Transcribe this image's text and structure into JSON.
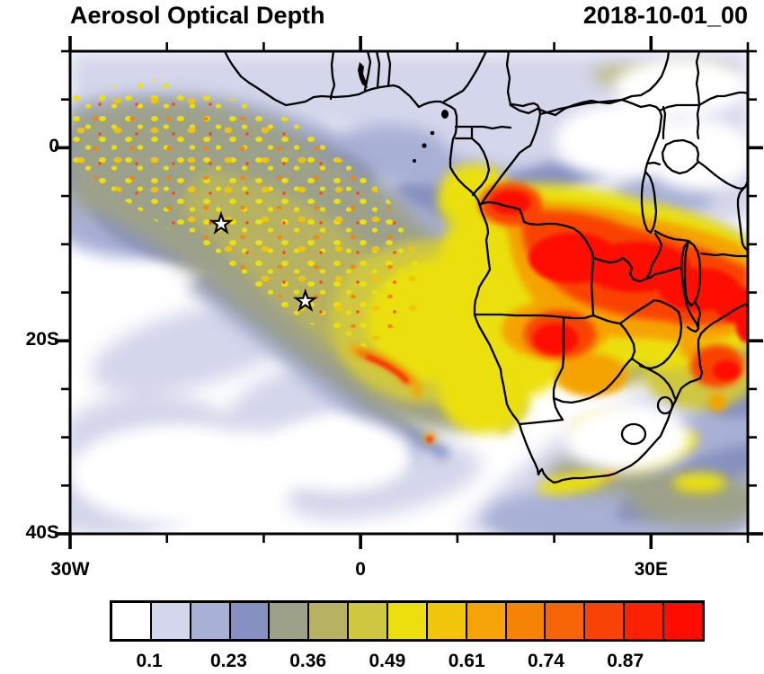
{
  "title": "Aerosol Optical Depth",
  "timestamp": "2018-10-01_00",
  "palette": [
    "#ffffff",
    "#d4d6eb",
    "#a9b0d5",
    "#8791c1",
    "#9da189",
    "#b6b262",
    "#cfc73f",
    "#ebe00e",
    "#f1c50a",
    "#f5a306",
    "#f58306",
    "#f56507",
    "#f94205",
    "#fb2103",
    "#fe0c00"
  ],
  "frame_color": "#000000",
  "chart_data": {
    "type": "heatmap",
    "title": "Aerosol Optical Depth",
    "timestamp_label": "2018-10-01_00",
    "x_axis": {
      "range_deg_lon": [
        -30,
        40
      ],
      "major_ticks": [
        {
          "deg": -30,
          "label": "30W"
        },
        {
          "deg": 0,
          "label": "0"
        },
        {
          "deg": 30,
          "label": "30E"
        }
      ],
      "minor_tick_degs": [
        -20,
        -10,
        10,
        20,
        40
      ],
      "minor_step_deg": 10
    },
    "y_axis": {
      "range_deg_lat": [
        -40,
        10
      ],
      "major_ticks": [
        {
          "deg": 0,
          "label": "0"
        },
        {
          "deg": -20,
          "label": "20S"
        },
        {
          "deg": -40,
          "label": "40S"
        }
      ],
      "minor_tick_degs": [
        10,
        5,
        -5,
        -10,
        -15,
        -25,
        -30,
        -35
      ],
      "minor_step_deg": 5
    },
    "colorbar": {
      "n_cells": 15,
      "cell_colors": [
        "#ffffff",
        "#d4d6eb",
        "#a9b0d5",
        "#8791c1",
        "#9da189",
        "#b6b262",
        "#cfc73f",
        "#ebe00e",
        "#f1c50a",
        "#f5a306",
        "#f58306",
        "#f56507",
        "#f94205",
        "#fb2103",
        "#fe0c00"
      ],
      "labels": [
        "0.1",
        "0.23",
        "0.36",
        "0.49",
        "0.61",
        "0.74",
        "0.87"
      ],
      "labeled_boundary_indices": [
        1,
        3,
        5,
        7,
        9,
        11,
        13
      ],
      "orientation": "horizontal",
      "position": "bottom"
    },
    "markers": [
      {
        "type": "star",
        "lon": -14.4,
        "lat": -7.9
      },
      {
        "type": "star",
        "lon": -5.7,
        "lat": -15.9
      }
    ],
    "field_summary": [
      {
        "region": "Central/southern Africa (Congo Basin, Angola, Zambia, around Lakes Tanganyika and Malawi)",
        "approx_lon": [
          12,
          40
        ],
        "approx_lat": [
          -16,
          -3
        ],
        "aod": "> 0.9 (red)"
      },
      {
        "region": "Biomass-burning outflow plume over SE Atlantic toward African coast",
        "approx_lon": [
          -10,
          12
        ],
        "approx_lat": [
          -25,
          -5
        ],
        "aod": "0.4 - 0.7 (olive to yellow), red arc ~0.9 near 0E, 21S"
      },
      {
        "region": "Speckled convective plume, NW tropical Atlantic part of domain",
        "approx_lon": [
          -30,
          -5
        ],
        "approx_lat": [
          -12,
          6
        ],
        "aod": "0.25 - 0.55 background with 0.6 - 0.9 speckles"
      },
      {
        "region": "Southern Ocean / SW corner and interior South Africa",
        "approx_lon": [
          -30,
          25
        ],
        "approx_lat": [
          -40,
          -25
        ],
        "aod": "< 0.17 (white to pale lavender)"
      }
    ],
    "grid": false,
    "legend_position": "bottom colorbar"
  }
}
